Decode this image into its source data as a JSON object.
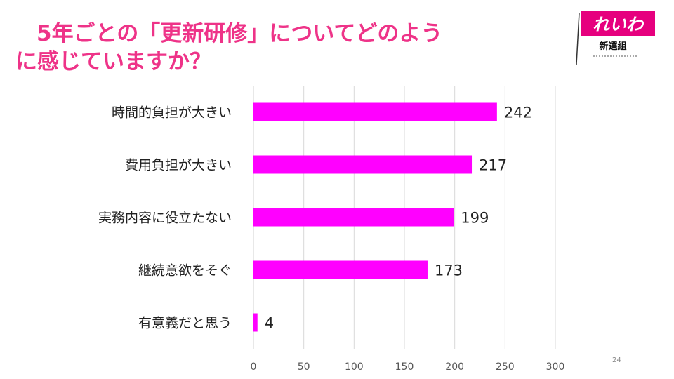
{
  "slide": {
    "title_line1": "5年ごとの「更新研修」についてどのよう",
    "title_line2": "に感じていますか？",
    "page_number": "24",
    "logo_text": "れいわ",
    "logo_subtitle": "新選組"
  },
  "colors": {
    "title": "#ee3388",
    "bar": "#ff00ff",
    "grid": "#d9d9d9",
    "logo_bg": "#e6007e"
  },
  "chart_data": {
    "type": "bar",
    "orientation": "horizontal",
    "categories": [
      "時間的負担が大きい",
      "費用負担が大きい",
      "実務内容に役立たない",
      "継続意欲をそぐ",
      "有意義だと思う"
    ],
    "values": [
      242,
      217,
      199,
      173,
      4
    ],
    "data_labels": [
      "242",
      "217",
      "199",
      "173",
      "4"
    ],
    "xlim": [
      0,
      300
    ],
    "x_ticks": [
      0,
      50,
      100,
      150,
      200,
      250,
      300
    ],
    "grid": true,
    "legend": "none"
  }
}
